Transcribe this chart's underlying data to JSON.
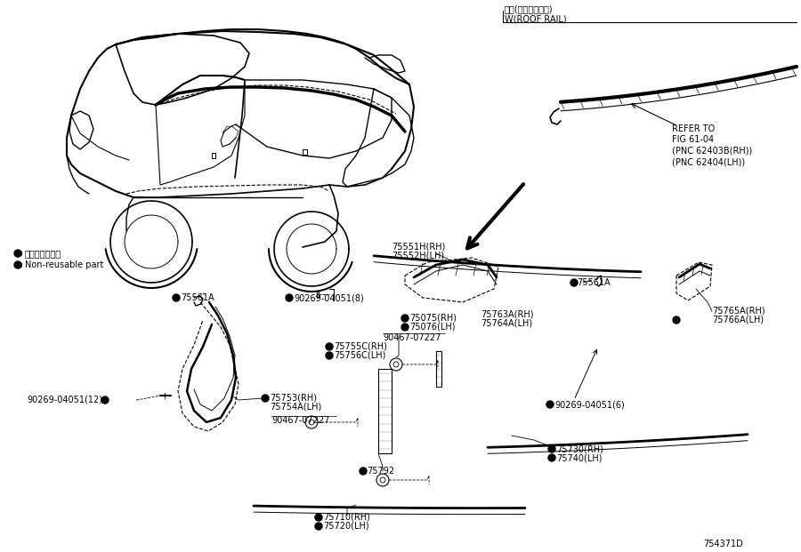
{
  "bg_color": "#ffffff",
  "fig_width": 9.0,
  "fig_height": 6.21,
  "diagram_id": "754371D",
  "roof_rail_label_jp": "有り(ルーフレール)",
  "roof_rail_label_en": "W(ROOF RAIL)",
  "refer_text": "REFER TO\nFIG 61-04\n(PNC 62403B(RH))\n(PNC 62404(LH))",
  "legend_line1": "● 再使用不可部品",
  "legend_line2": "● Non-reusable part",
  "text_color": "#000000"
}
